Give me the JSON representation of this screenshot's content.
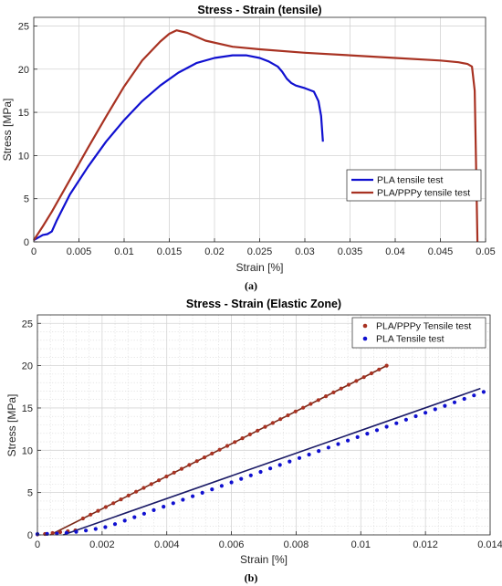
{
  "chart_data": [
    {
      "type": "line",
      "title": "Stress - Strain (tensile)",
      "xlabel": "Strain [%]",
      "ylabel": "Stress [MPa]",
      "xlim": [
        0,
        0.05
      ],
      "ylim": [
        0,
        26
      ],
      "xticks": [
        0,
        0.005,
        0.01,
        0.015,
        0.02,
        0.025,
        0.03,
        0.035,
        0.04,
        0.045,
        0.05
      ],
      "xtick_labels": [
        "0",
        "0.005",
        "0.01",
        "0.015",
        "0.02",
        "0.025",
        "0.03",
        "0.035",
        "0.04",
        "0.045",
        "0.05"
      ],
      "yticks": [
        0,
        5,
        10,
        15,
        20,
        25
      ],
      "ytick_labels": [
        "0",
        "5",
        "10",
        "15",
        "20",
        "25"
      ],
      "grid": "major",
      "legend_position": "lower-right",
      "caption": "(a)",
      "series": [
        {
          "name": "PLA tensile test",
          "color": "#1010d0",
          "x": [
            0,
            0.001,
            0.0015,
            0.002,
            0.0025,
            0.004,
            0.006,
            0.008,
            0.01,
            0.012,
            0.014,
            0.016,
            0.018,
            0.02,
            0.022,
            0.0235,
            0.025,
            0.026,
            0.027,
            0.0275,
            0.028,
            0.0285,
            0.029,
            0.03,
            0.031,
            0.0315,
            0.0318,
            0.032
          ],
          "y": [
            0.2,
            0.8,
            0.9,
            1.2,
            2.4,
            5.5,
            8.7,
            11.6,
            14.1,
            16.3,
            18.1,
            19.6,
            20.7,
            21.3,
            21.6,
            21.6,
            21.3,
            20.9,
            20.3,
            19.7,
            18.9,
            18.4,
            18.1,
            17.8,
            17.4,
            16.3,
            14.6,
            11.6
          ]
        },
        {
          "name": "PLA/PPPy tensile test",
          "color": "#a83222",
          "x": [
            0,
            0.001,
            0.002,
            0.004,
            0.006,
            0.008,
            0.01,
            0.012,
            0.014,
            0.015,
            0.0158,
            0.017,
            0.019,
            0.022,
            0.025,
            0.03,
            0.035,
            0.04,
            0.045,
            0.047,
            0.048,
            0.0485,
            0.0488,
            0.049,
            0.0491
          ],
          "y": [
            0.2,
            1.8,
            3.5,
            7.2,
            10.9,
            14.5,
            18.0,
            21.0,
            23.2,
            24.1,
            24.5,
            24.2,
            23.3,
            22.6,
            22.3,
            21.9,
            21.6,
            21.3,
            21.0,
            20.8,
            20.6,
            20.3,
            17.5,
            6.0,
            0.0
          ]
        }
      ]
    },
    {
      "type": "scatter",
      "title": "Stress - Strain (Elastic Zone)",
      "xlabel": "Strain [%]",
      "ylabel": "Stress [MPa]",
      "xlim": [
        0,
        0.014
      ],
      "ylim": [
        0,
        26
      ],
      "xticks": [
        0,
        0.002,
        0.004,
        0.006,
        0.008,
        0.01,
        0.012,
        0.014
      ],
      "xtick_labels": [
        "0",
        "0.002",
        "0.004",
        "0.006",
        "0.008",
        "0.01",
        "0.012",
        "0.014"
      ],
      "yticks": [
        0,
        5,
        10,
        15,
        20,
        25
      ],
      "ytick_labels": [
        "0",
        "5",
        "10",
        "15",
        "20",
        "25"
      ],
      "grid": "major-and-minor",
      "legend_position": "top-right",
      "caption": "(b)",
      "series": [
        {
          "name": "PLA/PPPy Tensile test",
          "color": "#a83222",
          "marker": "dot",
          "x_range": [
            0,
            0.0108
          ],
          "fit_line": {
            "x": [
              0.0004,
              0.0108
            ],
            "y": [
              0,
              20.0
            ]
          }
        },
        {
          "name": "PLA Tensile test",
          "color": "#1010d0",
          "marker": "dot",
          "x_range": [
            0,
            0.0138
          ],
          "fit_line": {
            "x": [
              0.0008,
              0.0137
            ],
            "y": [
              0,
              17.3
            ]
          }
        }
      ]
    }
  ]
}
